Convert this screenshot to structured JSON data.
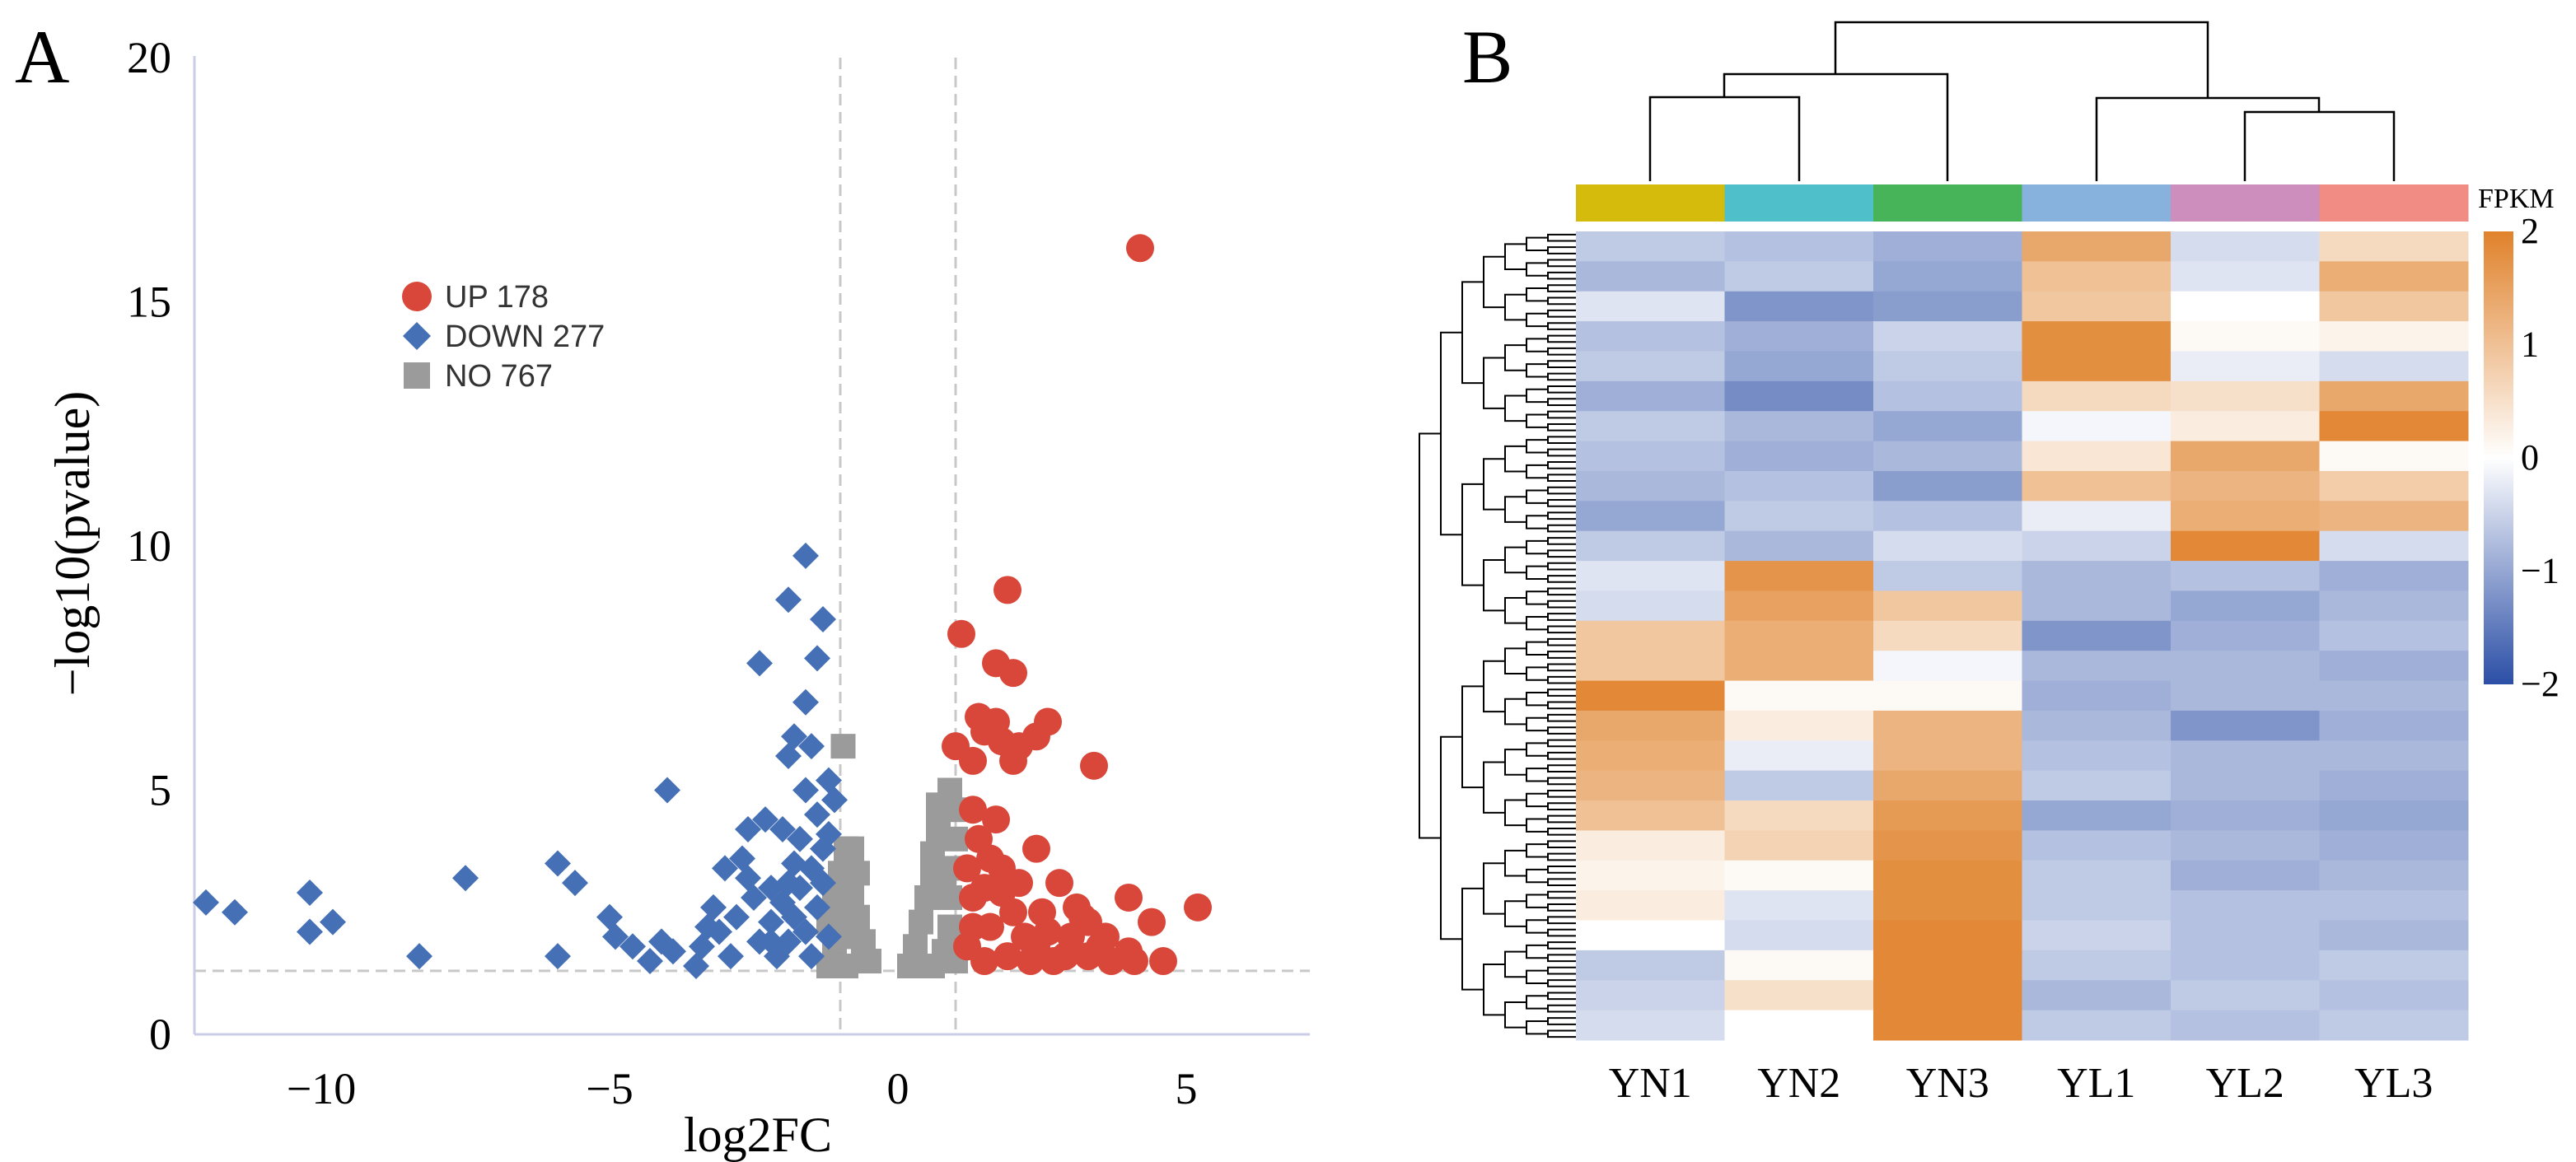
{
  "chart_data": [
    {
      "type": "scatter",
      "panel_label": "A",
      "title": "",
      "xlabel": "log2FC",
      "ylabel": "−log10(pvalue)",
      "xlim": [
        -12.2,
        7.1
      ],
      "ylim": [
        0,
        20
      ],
      "x_ticks": [
        -10,
        -5,
        0,
        5
      ],
      "x_tick_labels": [
        "−10",
        "−5",
        "0",
        "5"
      ],
      "y_ticks": [
        0,
        5,
        10,
        15,
        20
      ],
      "y_tick_labels": [
        "0",
        "5",
        "10",
        "15",
        "20"
      ],
      "thresholds": {
        "log2FC": [
          -1,
          1
        ],
        "neg_log10_p": 1.3
      },
      "legend_position": "top-left",
      "legend": [
        {
          "label": "UP 178",
          "color": "#d9473a",
          "marker": "circle"
        },
        {
          "label": "DOWN 277",
          "color": "#4570b6",
          "marker": "diamond"
        },
        {
          "label": "NO 767",
          "color": "#9b9b9b",
          "marker": "square"
        }
      ],
      "series": [
        {
          "name": "UP",
          "color": "#d9473a",
          "points": [
            [
              4.2,
              16.1
            ],
            [
              1.9,
              9.1
            ],
            [
              1.1,
              8.2
            ],
            [
              1.7,
              7.6
            ],
            [
              2.0,
              7.4
            ],
            [
              1.4,
              6.5
            ],
            [
              1.7,
              6.4
            ],
            [
              2.6,
              6.4
            ],
            [
              2.4,
              6.1
            ],
            [
              1.8,
              6.0
            ],
            [
              1.0,
              5.9
            ],
            [
              1.3,
              5.6
            ],
            [
              2.0,
              5.6
            ],
            [
              3.4,
              5.5
            ],
            [
              1.5,
              6.2
            ],
            [
              2.1,
              5.9
            ],
            [
              1.3,
              4.6
            ],
            [
              1.7,
              4.4
            ],
            [
              2.4,
              3.8
            ],
            [
              1.6,
              3.6
            ],
            [
              2.8,
              3.1
            ],
            [
              4.0,
              2.8
            ],
            [
              5.2,
              2.6
            ],
            [
              4.4,
              2.3
            ],
            [
              3.6,
              2.0
            ],
            [
              4.0,
              1.7
            ],
            [
              4.6,
              1.5
            ],
            [
              4.1,
              1.5
            ],
            [
              3.7,
              1.5
            ],
            [
              3.2,
              2.4
            ],
            [
              3.0,
              2.0
            ],
            [
              2.5,
              2.5
            ],
            [
              2.2,
              2.0
            ],
            [
              1.8,
              2.9
            ],
            [
              1.5,
              3.0
            ],
            [
              1.3,
              2.2
            ],
            [
              1.5,
              1.5
            ],
            [
              1.9,
              1.6
            ],
            [
              2.3,
              1.5
            ],
            [
              2.7,
              1.5
            ],
            [
              3.3,
              1.6
            ],
            [
              1.2,
              3.4
            ],
            [
              1.4,
              4.0
            ],
            [
              2.0,
              2.5
            ],
            [
              2.6,
              2.1
            ],
            [
              3.1,
              2.6
            ],
            [
              3.5,
              1.8
            ],
            [
              2.9,
              1.6
            ],
            [
              1.6,
              2.2
            ],
            [
              1.2,
              1.8
            ],
            [
              2.4,
              1.8
            ],
            [
              1.8,
              3.4
            ],
            [
              1.3,
              2.8
            ],
            [
              3.3,
              2.3
            ],
            [
              2.1,
              3.1
            ]
          ]
        },
        {
          "name": "DOWN",
          "color": "#4570b6",
          "points": [
            [
              -12.0,
              2.7
            ],
            [
              -11.5,
              2.5
            ],
            [
              -10.2,
              2.9
            ],
            [
              -10.2,
              2.1
            ],
            [
              -9.8,
              2.3
            ],
            [
              -8.3,
              1.6
            ],
            [
              -7.5,
              3.2
            ],
            [
              -5.9,
              3.5
            ],
            [
              -5.6,
              3.1
            ],
            [
              -5.9,
              1.6
            ],
            [
              -5.0,
              2.4
            ],
            [
              -4.9,
              2.0
            ],
            [
              -4.6,
              1.8
            ],
            [
              -4.0,
              5.0
            ],
            [
              -4.3,
              1.5
            ],
            [
              -4.1,
              1.9
            ],
            [
              -3.9,
              1.7
            ],
            [
              -3.5,
              1.4
            ],
            [
              -3.2,
              2.6
            ],
            [
              -3.0,
              3.4
            ],
            [
              -2.7,
              3.6
            ],
            [
              -2.6,
              4.2
            ],
            [
              -2.4,
              7.6
            ],
            [
              -2.3,
              4.4
            ],
            [
              -1.9,
              8.9
            ],
            [
              -1.8,
              6.1
            ],
            [
              -1.9,
              5.7
            ],
            [
              -1.6,
              9.8
            ],
            [
              -1.6,
              6.8
            ],
            [
              -1.4,
              7.7
            ],
            [
              -1.3,
              8.5
            ],
            [
              -1.5,
              5.9
            ],
            [
              -1.6,
              5.0
            ],
            [
              -1.4,
              4.5
            ],
            [
              -2.0,
              4.2
            ],
            [
              -2.2,
              3.0
            ],
            [
              -1.8,
              3.5
            ],
            [
              -1.3,
              3.8
            ],
            [
              -1.2,
              5.2
            ],
            [
              -1.1,
              4.8
            ],
            [
              -3.4,
              1.8
            ],
            [
              -3.1,
              2.1
            ],
            [
              -2.9,
              1.6
            ],
            [
              -2.8,
              2.4
            ],
            [
              -2.5,
              2.8
            ],
            [
              -2.4,
              1.9
            ],
            [
              -2.2,
              2.3
            ],
            [
              -2.1,
              1.6
            ],
            [
              -2.0,
              2.7
            ],
            [
              -1.9,
              1.9
            ],
            [
              -1.8,
              2.4
            ],
            [
              -1.7,
              3.0
            ],
            [
              -1.6,
              2.1
            ],
            [
              -1.5,
              1.6
            ],
            [
              -1.4,
              2.6
            ],
            [
              -1.3,
              3.1
            ],
            [
              -1.2,
              2.0
            ],
            [
              -1.2,
              4.1
            ],
            [
              -1.5,
              3.4
            ],
            [
              -1.7,
              4.0
            ],
            [
              -2.6,
              3.2
            ],
            [
              -3.3,
              2.2
            ],
            [
              -1.9,
              3.1
            ],
            [
              -2.2,
              1.9
            ]
          ]
        },
        {
          "name": "NO",
          "color": "#9b9b9b",
          "points": [
            [
              -0.95,
              5.9
            ],
            [
              -1.2,
              1.4
            ],
            [
              -1.1,
              1.8
            ],
            [
              -1.2,
              2.3
            ],
            [
              -1.1,
              2.8
            ],
            [
              -1.0,
              3.3
            ],
            [
              -0.9,
              3.8
            ],
            [
              -0.8,
              3.8
            ],
            [
              -0.7,
              3.3
            ],
            [
              -0.8,
              2.8
            ],
            [
              -0.7,
              2.4
            ],
            [
              -0.6,
              1.9
            ],
            [
              -0.5,
              1.5
            ],
            [
              -0.9,
              1.4
            ],
            [
              -0.9,
              2.0
            ],
            [
              -1.0,
              2.5
            ],
            [
              0.2,
              1.4
            ],
            [
              0.3,
              1.8
            ],
            [
              0.4,
              2.3
            ],
            [
              0.5,
              2.8
            ],
            [
              0.6,
              3.2
            ],
            [
              0.6,
              3.7
            ],
            [
              0.7,
              4.2
            ],
            [
              0.7,
              4.7
            ],
            [
              0.9,
              5.0
            ],
            [
              1.0,
              4.6
            ],
            [
              1.0,
              4.0
            ],
            [
              1.0,
              3.4
            ],
            [
              0.9,
              2.8
            ],
            [
              0.9,
              2.2
            ],
            [
              0.8,
              1.7
            ],
            [
              0.6,
              1.4
            ],
            [
              1.0,
              1.5
            ],
            [
              0.8,
              3.0
            ],
            [
              0.4,
              1.4
            ]
          ]
        }
      ]
    },
    {
      "type": "heatmap",
      "panel_label": "B",
      "colorbar_title": "FPKM",
      "colorbar_range": [
        -2,
        2
      ],
      "colorbar_ticks": [
        2,
        1,
        0,
        -1,
        -2
      ],
      "colorbar_tick_labels": [
        "2",
        "1",
        "0",
        "−1",
        "−2"
      ],
      "colors": {
        "low": "#2b4ea6",
        "mid": "#ffffff",
        "high": "#e0822b"
      },
      "columns": [
        "YN1",
        "YN2",
        "YN3",
        "YL1",
        "YL2",
        "YL3"
      ],
      "column_group_colors": [
        "#d4bb0c",
        "#4fc0c9",
        "#47b45a",
        "#88b2de",
        "#cd8dbd",
        "#f08c84"
      ],
      "column_dendrogram": "((YN1,YN2),YN3),(YL1,(YL2,YL3))",
      "rows": [
        [
          -0.6,
          -0.7,
          -0.9,
          1.4,
          -0.4,
          0.6
        ],
        [
          -0.8,
          -0.6,
          -1.0,
          1.0,
          -0.3,
          1.3
        ],
        [
          -0.3,
          -1.2,
          -1.1,
          0.9,
          0.0,
          0.9
        ],
        [
          -0.7,
          -0.9,
          -0.5,
          1.8,
          0.1,
          0.2
        ],
        [
          -0.6,
          -1.0,
          -0.6,
          1.8,
          -0.2,
          -0.4
        ],
        [
          -0.9,
          -1.3,
          -0.7,
          0.6,
          0.5,
          1.4
        ],
        [
          -0.6,
          -0.8,
          -1.0,
          -0.1,
          0.3,
          1.9
        ],
        [
          -0.7,
          -0.9,
          -0.8,
          0.4,
          1.4,
          0.1
        ],
        [
          -0.8,
          -0.7,
          -1.1,
          1.0,
          1.2,
          0.8
        ],
        [
          -1.0,
          -0.6,
          -0.7,
          -0.2,
          1.3,
          1.2
        ],
        [
          -0.6,
          -0.8,
          -0.4,
          -0.5,
          1.9,
          -0.4
        ],
        [
          -0.3,
          1.7,
          -0.6,
          -0.8,
          -0.7,
          -0.9
        ],
        [
          -0.4,
          1.5,
          0.9,
          -0.8,
          -1.0,
          -0.8
        ],
        [
          0.9,
          1.3,
          0.6,
          -1.2,
          -0.9,
          -0.7
        ],
        [
          0.9,
          1.3,
          -0.1,
          -0.8,
          -0.8,
          -0.9
        ],
        [
          1.9,
          0.1,
          0.1,
          -0.9,
          -0.8,
          -0.8
        ],
        [
          1.4,
          0.3,
          1.2,
          -0.8,
          -1.2,
          -0.9
        ],
        [
          1.3,
          -0.2,
          1.2,
          -0.7,
          -0.8,
          -0.8
        ],
        [
          1.2,
          -0.6,
          1.4,
          -0.6,
          -0.8,
          -0.9
        ],
        [
          1.0,
          0.6,
          1.6,
          -1.0,
          -0.9,
          -1.0
        ],
        [
          0.3,
          0.7,
          1.7,
          -0.7,
          -0.8,
          -0.9
        ],
        [
          0.2,
          0.1,
          1.8,
          -0.6,
          -0.9,
          -0.8
        ],
        [
          0.3,
          -0.3,
          1.8,
          -0.6,
          -0.7,
          -0.7
        ],
        [
          0.0,
          -0.4,
          1.9,
          -0.5,
          -0.7,
          -0.8
        ],
        [
          -0.6,
          0.1,
          1.9,
          -0.6,
          -0.7,
          -0.6
        ],
        [
          -0.5,
          0.5,
          1.9,
          -0.8,
          -0.6,
          -0.7
        ],
        [
          -0.4,
          0.0,
          1.9,
          -0.6,
          -0.7,
          -0.6
        ]
      ]
    }
  ]
}
